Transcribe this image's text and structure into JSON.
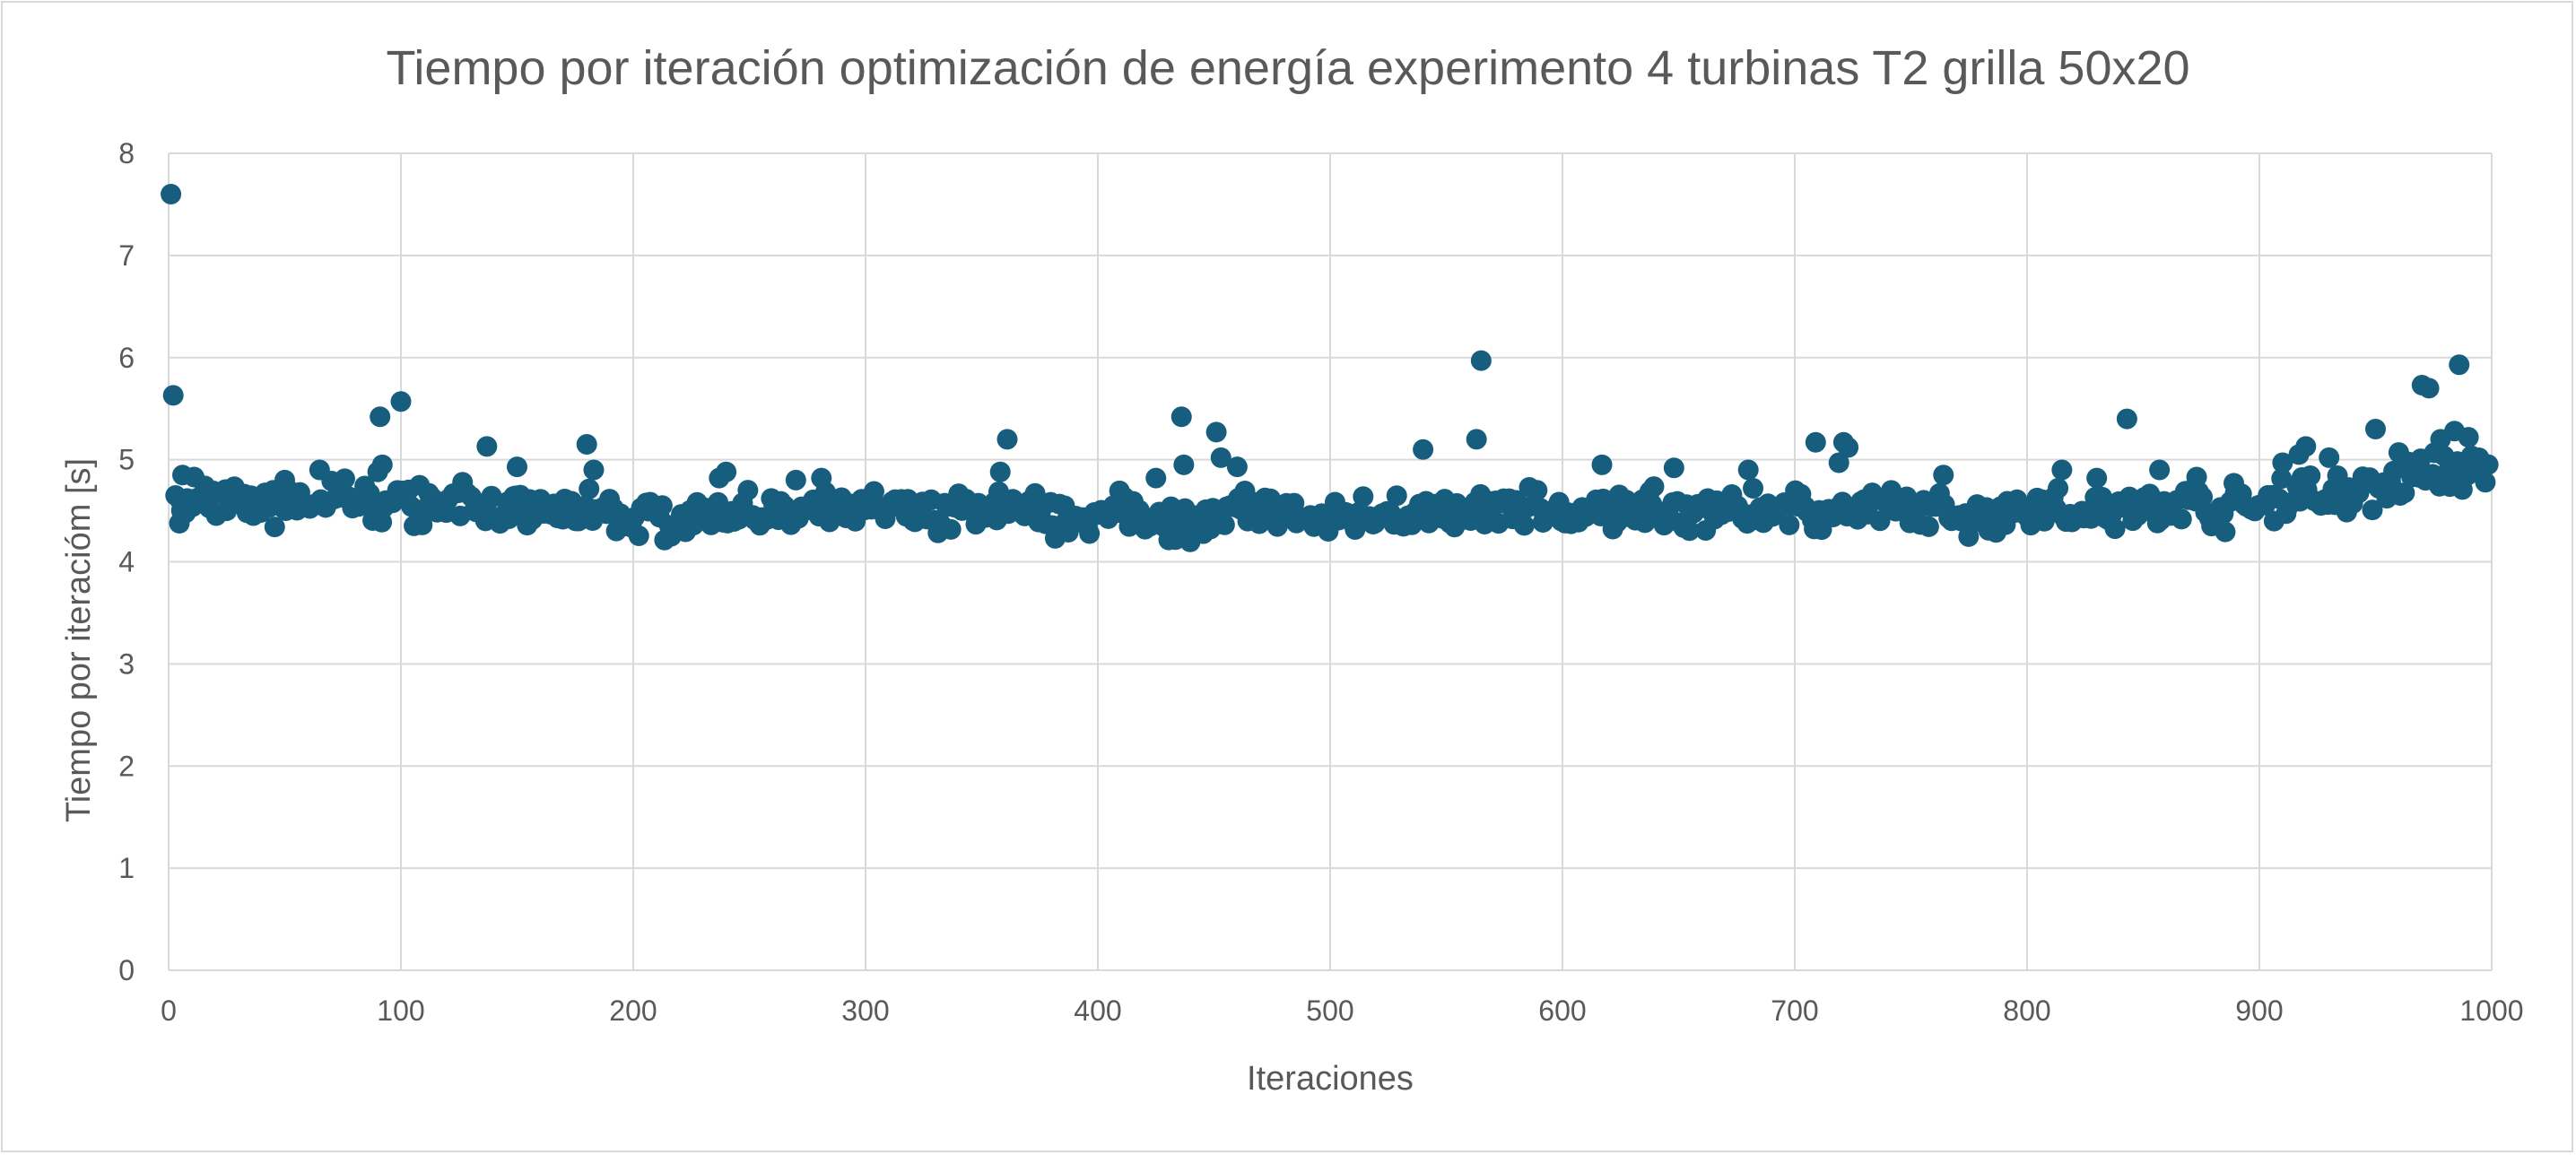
{
  "chart_data": {
    "type": "scatter",
    "title": "Tiempo por iteración optimización de energía experimento 4 turbinas T2 grilla 50x20",
    "xlabel": "Iteraciones",
    "ylabel": "Tiempo por iteracióm [s]",
    "xlim": [
      0,
      1000
    ],
    "ylim": [
      0,
      8
    ],
    "x_ticks": [
      "0",
      "100",
      "200",
      "300",
      "400",
      "500",
      "600",
      "700",
      "800",
      "900",
      "1000"
    ],
    "y_ticks": [
      "0",
      "1",
      "2",
      "3",
      "4",
      "5",
      "6",
      "7",
      "8"
    ],
    "grid": true,
    "legend": "none",
    "marker_color": "#175E7E",
    "series": [
      {
        "x": [
          1,
          2,
          3,
          5,
          6,
          8,
          11,
          25,
          45,
          50,
          65,
          90,
          91,
          92,
          100,
          108,
          137,
          150,
          180,
          183,
          237,
          240,
          270,
          281,
          358,
          361,
          373,
          425,
          436,
          437,
          451,
          453,
          460,
          540,
          563,
          565,
          617,
          648,
          680,
          709,
          719,
          721,
          723,
          764,
          815,
          830,
          843,
          857,
          873,
          889,
          910,
          917,
          920,
          930,
          950,
          960,
          970,
          973,
          978,
          984,
          986,
          990
        ],
        "y": [
          7.6,
          5.63,
          4.65,
          4.6,
          4.85,
          4.62,
          4.83,
          4.5,
          4.7,
          4.8,
          4.9,
          4.88,
          5.42,
          4.95,
          5.57,
          4.75,
          5.13,
          4.93,
          5.15,
          4.9,
          4.82,
          4.88,
          4.8,
          4.82,
          4.88,
          5.2,
          4.67,
          4.82,
          5.42,
          4.95,
          5.27,
          5.02,
          4.93,
          5.1,
          5.2,
          5.97,
          4.95,
          4.92,
          4.9,
          5.17,
          4.97,
          5.17,
          5.12,
          4.85,
          4.9,
          4.82,
          5.4,
          4.9,
          4.83,
          4.77,
          4.97,
          5.05,
          5.13,
          5.02,
          5.3,
          5.07,
          5.73,
          5.7,
          5.2,
          5.28,
          5.93,
          5.22
        ],
        "base": {
          "x_start": 4,
          "x_end": 998,
          "step": 3,
          "baseline_points": [
            [
              0,
              4.55
            ],
            [
              100,
              4.6
            ],
            [
              200,
              4.45
            ],
            [
              300,
              4.5
            ],
            [
              400,
              4.45
            ],
            [
              500,
              4.45
            ],
            [
              600,
              4.5
            ],
            [
              700,
              4.5
            ],
            [
              800,
              4.5
            ],
            [
              900,
              4.55
            ],
            [
              950,
              4.75
            ],
            [
              1000,
              4.9
            ]
          ],
          "spread": 0.2
        }
      }
    ]
  }
}
